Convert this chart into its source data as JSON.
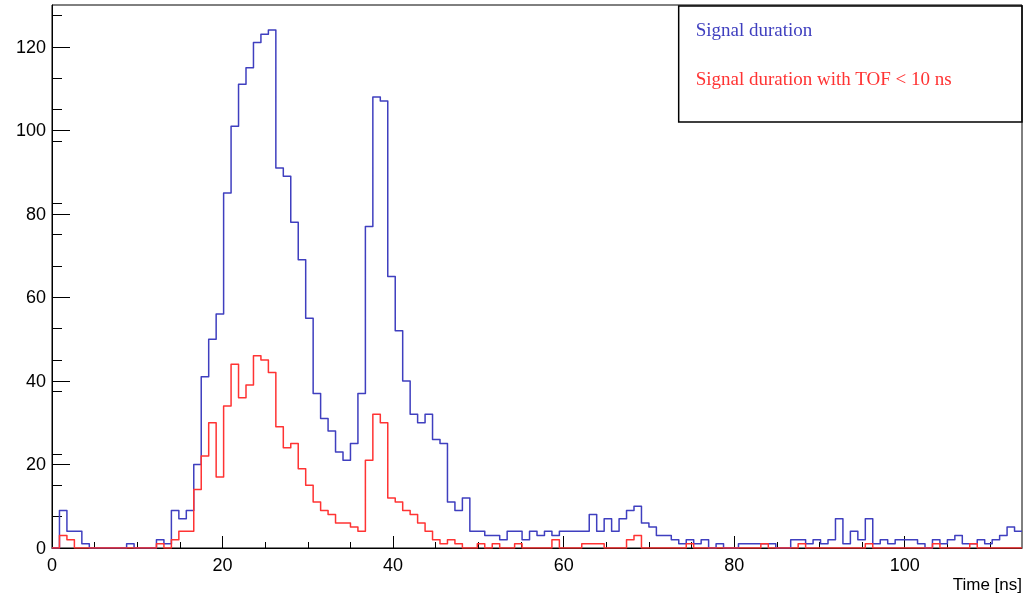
{
  "chart_data": {
    "type": "histogram",
    "xlabel": "Time [ns]",
    "bins": [
      0,
      0.875,
      1.75,
      2.625,
      3.5,
      4.375,
      5.25,
      6.125,
      7,
      7.875,
      8.75,
      9.625,
      10.5,
      11.375,
      12.25,
      13.125,
      14,
      14.875,
      15.75,
      16.625,
      17.5,
      18.375,
      19.25,
      20.125,
      21,
      21.875,
      22.75,
      23.625,
      24.5,
      25.375,
      26.25,
      27.125,
      28,
      28.875,
      29.75,
      30.625,
      31.5,
      32.375,
      33.25,
      34.125,
      35,
      35.875,
      36.75,
      37.625,
      38.5,
      39.375,
      40.25,
      41.125,
      42,
      42.875,
      43.75,
      44.625,
      45.5,
      46.375,
      47.25,
      48.125,
      49,
      49.875,
      50.75,
      51.625,
      52.5,
      53.375,
      54.25,
      55.125,
      56,
      56.875,
      57.75,
      58.625,
      59.5,
      60.375,
      61.25,
      62.125,
      63,
      63.875,
      64.75,
      65.625,
      66.5,
      67.375,
      68.25,
      69.125,
      70,
      70.875,
      71.75,
      72.625,
      73.5,
      74.375,
      75.25,
      76.125,
      77,
      77.875,
      78.75,
      79.625,
      80.5,
      81.375,
      82.25,
      83.125,
      84,
      84.875,
      85.75,
      86.625,
      87.5,
      88.375,
      89.25,
      90.125,
      91,
      91.875,
      92.75,
      93.625,
      94.5,
      95.375,
      96.25,
      97.125,
      98,
      98.875,
      99.75,
      100.625,
      101.5,
      102.375,
      103.25,
      104.125,
      105,
      105.875,
      106.75,
      107.625,
      108.5,
      109.375,
      110.25,
      111.125,
      112,
      112.875,
      113.75
    ],
    "series": [
      {
        "name": "Signal duration",
        "color": "#3f3fbf",
        "values": [
          0,
          9,
          4,
          4,
          1,
          0,
          0,
          0,
          0,
          0,
          1,
          0,
          0,
          0,
          2,
          1,
          9,
          7,
          9,
          20,
          41,
          50,
          56,
          85,
          101,
          111,
          115,
          121,
          123,
          124,
          91,
          89,
          78,
          69,
          55,
          37,
          31,
          28,
          23,
          21,
          25,
          37,
          77,
          108,
          107,
          65,
          52,
          40,
          32,
          30,
          32,
          26,
          25,
          11,
          9,
          12,
          4,
          4,
          3,
          3,
          2,
          4,
          4,
          2,
          4,
          3,
          4,
          3,
          4,
          4,
          4,
          4,
          8,
          4,
          7,
          4,
          7,
          9,
          10,
          6,
          5,
          3,
          3,
          2,
          1,
          2,
          1,
          2,
          0,
          1,
          0,
          0,
          1,
          1,
          1,
          1,
          1,
          0,
          0,
          2,
          2,
          1,
          2,
          1,
          2,
          7,
          1,
          4,
          2,
          7,
          1,
          2,
          1,
          2,
          2,
          2,
          1,
          0,
          2,
          1,
          2,
          3,
          1,
          1,
          2,
          1,
          2,
          3,
          5,
          4
        ]
      },
      {
        "name": "Signal duration with TOF < 10 ns",
        "color": "#ff3333",
        "values": [
          0,
          3,
          2,
          0,
          0,
          0,
          0,
          0,
          0,
          0,
          0,
          0,
          0,
          0,
          1,
          0,
          2,
          4,
          4,
          14,
          22,
          30,
          17,
          34,
          44,
          36,
          39,
          46,
          45,
          42,
          29,
          24,
          25,
          19,
          15,
          11,
          9,
          8,
          6,
          6,
          5,
          4,
          21,
          32,
          30,
          12,
          11,
          9,
          8,
          6,
          4,
          2,
          1,
          2,
          1,
          0,
          0,
          1,
          0,
          1,
          0,
          0,
          1,
          0,
          0,
          0,
          0,
          2,
          0,
          0,
          0,
          1,
          1,
          1,
          0,
          0,
          0,
          2,
          3,
          0,
          0,
          0,
          0,
          0,
          0,
          1,
          0,
          0,
          0,
          0,
          0,
          0,
          0,
          0,
          0,
          1,
          0,
          0,
          0,
          0,
          1,
          0,
          0,
          0,
          0,
          0,
          0,
          0,
          0,
          1,
          0,
          0,
          0,
          0,
          0,
          0,
          0,
          0,
          1,
          0,
          0,
          0,
          0,
          1,
          0,
          0,
          0,
          0,
          0,
          0
        ]
      }
    ],
    "xlim": [
      0,
      113.75
    ],
    "xticks": [
      0,
      20,
      40,
      60,
      80,
      100
    ],
    "ylim": [
      0,
      130
    ],
    "yticks": [
      0,
      20,
      40,
      60,
      80,
      100,
      120
    ],
    "legend": "top right"
  }
}
